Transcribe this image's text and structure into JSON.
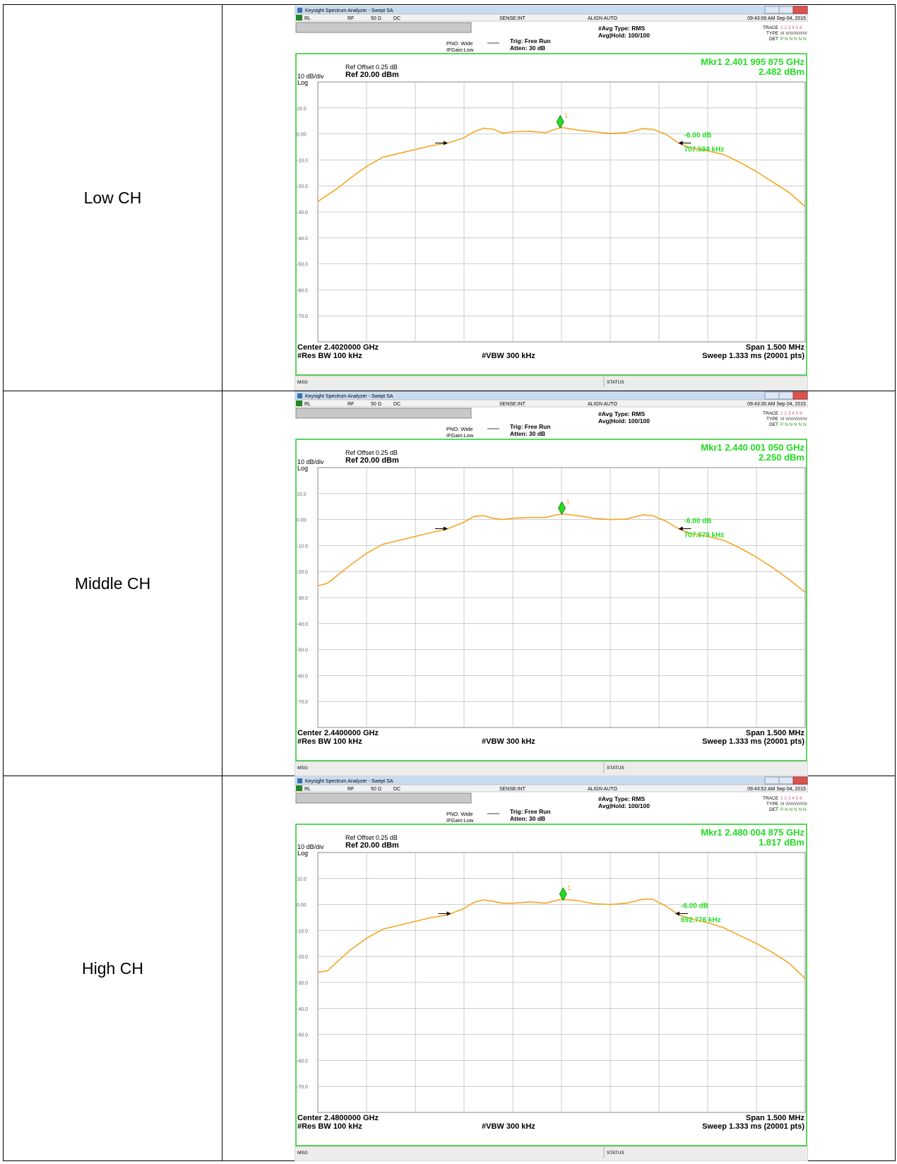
{
  "table": {
    "rows": [
      {
        "label": "Low CH"
      },
      {
        "label": "Middle CH"
      },
      {
        "label": "High CH"
      }
    ]
  },
  "app": {
    "window_title": "Keysight Spectrum Analyzer - Swept SA",
    "status_bar": {
      "rl": "RL",
      "rf": "RF",
      "impedance": "50 Ω",
      "coupling": "DC",
      "sense": "SENSE:INT",
      "align": "ALIGN AUTO"
    },
    "avg_type": "#Avg Type: RMS",
    "avg_hold": "Avg|Hold: 100/100",
    "pno": "PNO: Wide",
    "ifgain": "IFGain:Low",
    "trig": "Trig: Free Run",
    "atten": "Atten: 30 dB",
    "trace_labels": {
      "trace": "TRACE",
      "type": "TYPE",
      "det": "DET",
      "trace_nums": "1 2 3 4 5 6",
      "type_vals": "M WWWWW",
      "det_vals": "P N N N N N"
    },
    "ref_offset": "Ref Offset 0.25 dB",
    "ref_level": "Ref 20.00 dBm",
    "scale": "10 dB/div",
    "scale_type": "Log",
    "rbw": "#Res BW 100 kHz",
    "vbw": "#VBW 300 kHz",
    "span": "Span 1.500 MHz",
    "sweep": "Sweep  1.333 ms (20001 pts)",
    "msg": "MSG",
    "status": "STATUS",
    "delta_db": "-6.00 dB",
    "colors": {
      "trace": "#f5a623",
      "marker": "#22dd22",
      "grid_border": "#22cc22",
      "readout": "#22dd22"
    }
  },
  "chart_data": [
    {
      "type": "line",
      "timestamp": "09:43:06 AM Sep 04, 2015",
      "center": "Center 2.4020000 GHz",
      "marker_readout": "Mkr1 2.401 995 875 GHz",
      "marker_level": "2.482 dBm",
      "bandwidth": "707.594 kHz",
      "marker": {
        "x": -0.004,
        "y": 2.48
      },
      "arrows": {
        "left_x": -0.35,
        "right_x": 0.36,
        "y": -3.5
      },
      "xlim": [
        -0.75,
        0.75
      ],
      "ylim": [
        -80,
        20
      ],
      "ytick_labels": [
        "10.0",
        "0.00",
        "-10.0",
        "-20.0",
        "-30.0",
        "-40.0",
        "-50.0",
        "-60.0",
        "-70.0"
      ],
      "x": [
        -0.75,
        -0.72,
        -0.69,
        -0.65,
        -0.6,
        -0.55,
        -0.5,
        -0.45,
        -0.4,
        -0.35,
        -0.3,
        -0.27,
        -0.24,
        -0.21,
        -0.18,
        -0.15,
        -0.1,
        -0.05,
        0,
        0.05,
        0.1,
        0.15,
        0.2,
        0.25,
        0.28,
        0.32,
        0.36,
        0.4,
        0.45,
        0.5,
        0.55,
        0.6,
        0.65,
        0.7,
        0.75
      ],
      "y": [
        -26,
        -23.5,
        -21,
        -17,
        -12.5,
        -9,
        -7.5,
        -6,
        -4.5,
        -3.5,
        -1.5,
        0.8,
        2.2,
        1.8,
        0.3,
        0.8,
        1,
        0.5,
        2.5,
        1.5,
        0.8,
        0.2,
        0.5,
        2,
        1.8,
        0,
        -3.5,
        -5.5,
        -6.5,
        -8,
        -11,
        -14.5,
        -18.5,
        -22.5,
        -28
      ]
    },
    {
      "type": "line",
      "timestamp": "09:43:30 AM Sep 04, 2015",
      "center": "Center 2.4400000 GHz",
      "marker_readout": "Mkr1 2.440 001 050 GHz",
      "marker_level": "2.250 dBm",
      "bandwidth": "707.879 kHz",
      "marker": {
        "x": 0.001,
        "y": 2.25
      },
      "arrows": {
        "left_x": -0.35,
        "right_x": 0.36,
        "y": -3.5
      },
      "xlim": [
        -0.75,
        0.75
      ],
      "ylim": [
        -80,
        20
      ],
      "ytick_labels": [
        "10.0",
        "0.00",
        "-10.0",
        "-20.0",
        "-30.0",
        "-40.0",
        "-50.0",
        "-60.0",
        "-70.0"
      ],
      "x": [
        -0.75,
        -0.72,
        -0.69,
        -0.65,
        -0.6,
        -0.55,
        -0.5,
        -0.45,
        -0.4,
        -0.35,
        -0.3,
        -0.27,
        -0.24,
        -0.21,
        -0.18,
        -0.15,
        -0.1,
        -0.05,
        0,
        0.05,
        0.1,
        0.15,
        0.2,
        0.25,
        0.28,
        0.32,
        0.36,
        0.4,
        0.45,
        0.5,
        0.55,
        0.6,
        0.65,
        0.7,
        0.75
      ],
      "y": [
        -25.5,
        -24.5,
        -21.5,
        -17.5,
        -13,
        -9.5,
        -8,
        -6.5,
        -5,
        -3.5,
        -1,
        1.2,
        1.5,
        0.5,
        0,
        0.5,
        0.8,
        0.8,
        2.2,
        1.5,
        0.5,
        0,
        0.2,
        1.8,
        1.5,
        -0.5,
        -3.5,
        -5.5,
        -6.5,
        -8,
        -11,
        -14.5,
        -18.5,
        -23,
        -28
      ]
    },
    {
      "type": "line",
      "timestamp": "09:43:52 AM Sep 04, 2015",
      "center": "Center 2.4800000 GHz",
      "marker_readout": "Mkr1 2.480 004 875 GHz",
      "marker_level": "1.817 dBm",
      "bandwidth": "692.776 kHz",
      "marker": {
        "x": 0.005,
        "y": 1.82
      },
      "arrows": {
        "left_x": -0.34,
        "right_x": 0.35,
        "y": -3.5
      },
      "xlim": [
        -0.75,
        0.75
      ],
      "ylim": [
        -80,
        20
      ],
      "ytick_labels": [
        "10.0",
        "0.00",
        "-10.0",
        "-20.0",
        "-30.0",
        "-40.0",
        "-50.0",
        "-60.0",
        "-70.0"
      ],
      "x": [
        -0.75,
        -0.72,
        -0.69,
        -0.65,
        -0.6,
        -0.55,
        -0.5,
        -0.45,
        -0.4,
        -0.35,
        -0.3,
        -0.27,
        -0.24,
        -0.21,
        -0.18,
        -0.15,
        -0.1,
        -0.05,
        0,
        0.05,
        0.1,
        0.15,
        0.2,
        0.25,
        0.28,
        0.32,
        0.36,
        0.4,
        0.45,
        0.5,
        0.55,
        0.6,
        0.65,
        0.7,
        0.75
      ],
      "y": [
        -26,
        -25.5,
        -22,
        -17.5,
        -13,
        -9.5,
        -8,
        -6.5,
        -5,
        -4,
        -1.5,
        0.8,
        1.8,
        1.2,
        0.5,
        0.5,
        1,
        0.5,
        2,
        1.5,
        0.3,
        0,
        0.5,
        2,
        2,
        -0.5,
        -4,
        -5.5,
        -7,
        -9,
        -12,
        -15,
        -18.5,
        -22.5,
        -28.5
      ]
    }
  ]
}
